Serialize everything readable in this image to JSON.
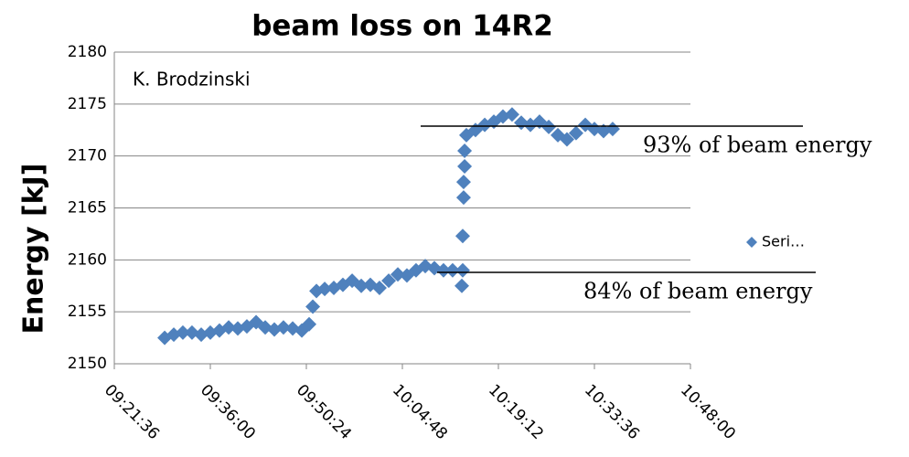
{
  "chart_data": {
    "type": "scatter",
    "title": "beam loss on 14R2",
    "y_label": "Energy [kJ]",
    "annotations": [
      "K. Brodzinski",
      "93% of beam energy",
      "84% of beam energy"
    ],
    "xlim": [
      33696,
      38880
    ],
    "xticks": [
      {
        "value": 33696,
        "label": "09:21:36"
      },
      {
        "value": 34560,
        "label": "09:36:00"
      },
      {
        "value": 35424,
        "label": "09:50:24"
      },
      {
        "value": 36288,
        "label": "10:04:48"
      },
      {
        "value": 37152,
        "label": "10:19:12"
      },
      {
        "value": 38016,
        "label": "10:33:36"
      },
      {
        "value": 38880,
        "label": "10:48:00"
      }
    ],
    "ylim": [
      2150,
      2180
    ],
    "yticks": [
      2150,
      2155,
      2160,
      2165,
      2170,
      2175,
      2180
    ],
    "grid": true,
    "legend": "right",
    "series": [
      {
        "name": "Seri…",
        "color": "#4f81bd",
        "x": [
          34149,
          34231,
          34313,
          34395,
          34478,
          34560,
          34642,
          34725,
          34807,
          34889,
          34972,
          35054,
          35136,
          35218,
          35301,
          35383,
          35449,
          35482,
          35515,
          35589,
          35671,
          35753,
          35836,
          35918,
          36000,
          36082,
          36165,
          36247,
          36329,
          36411,
          36494,
          36576,
          36658,
          36740,
          36823,
          36831,
          36831,
          36839,
          36839,
          36848,
          36848,
          36864,
          36946,
          37029,
          37111,
          37193,
          37275,
          37358,
          37440,
          37522,
          37605,
          37687,
          37769,
          37851,
          37934,
          38016,
          38098,
          38180
        ],
        "values": [
          2152.5,
          2152.8,
          2153,
          2153,
          2152.8,
          2153,
          2153.2,
          2153.5,
          2153.4,
          2153.6,
          2154,
          2153.5,
          2153.3,
          2153.5,
          2153.4,
          2153.2,
          2153.8,
          2155.5,
          2157,
          2157.2,
          2157.3,
          2157.6,
          2158,
          2157.5,
          2157.6,
          2157.3,
          2158,
          2158.6,
          2158.5,
          2159,
          2159.4,
          2159.2,
          2159,
          2159,
          2157.5,
          2159,
          2162.3,
          2166,
          2167.5,
          2169,
          2170.5,
          2172,
          2172.5,
          2173,
          2173.3,
          2173.8,
          2174,
          2173.2,
          2173,
          2173.3,
          2172.8,
          2172,
          2171.6,
          2172.2,
          2173,
          2172.6,
          2172.4,
          2172.6
        ]
      }
    ]
  }
}
